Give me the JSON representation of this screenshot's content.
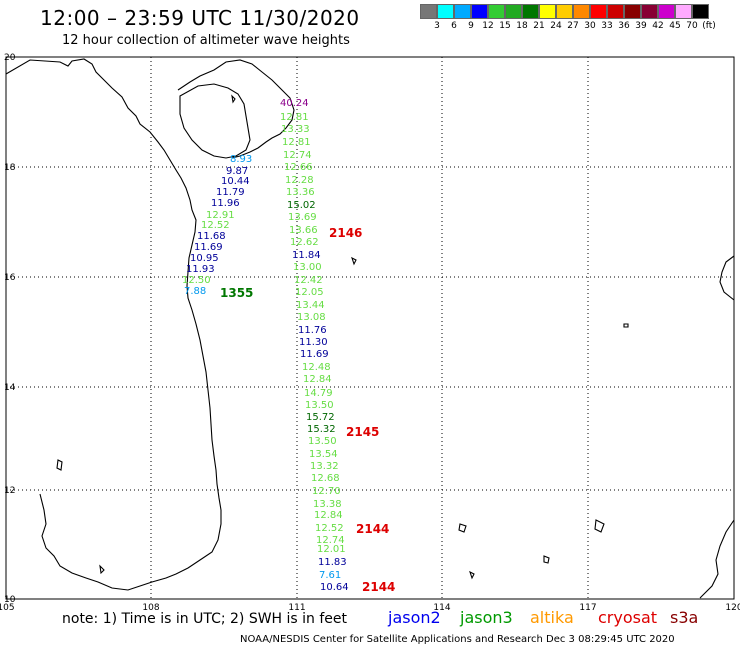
{
  "header": {
    "title": "12:00 – 23:59 UTC 11/30/2020",
    "subtitle": "12 hour collection of altimeter wave heights"
  },
  "colorbar": {
    "labels": [
      "3",
      "6",
      "9",
      "12",
      "15",
      "18",
      "21",
      "24",
      "27",
      "30",
      "33",
      "36",
      "39",
      "42",
      "45",
      "70",
      "(ft)"
    ],
    "colors": [
      "#777777",
      "#00ffff",
      "#00aaff",
      "#0000ff",
      "#33cc33",
      "#22aa22",
      "#007700",
      "#ffff00",
      "#ffcc00",
      "#ff8800",
      "#ff0000",
      "#cc0000",
      "#880000",
      "#880033",
      "#cc00cc",
      "#ffaaff",
      "#000000"
    ]
  },
  "axes": {
    "x_ticks": [
      "105",
      "108",
      "111",
      "114",
      "117",
      "120"
    ],
    "y_ticks": [
      "20",
      "18",
      "16",
      "14",
      "12",
      "10"
    ]
  },
  "observations": [
    {
      "v": "40.24",
      "color": "#8b008b"
    },
    {
      "v": "12.81",
      "color": "#66dd44"
    },
    {
      "v": "13.33",
      "color": "#66dd44"
    },
    {
      "v": "12.81",
      "color": "#66dd44"
    },
    {
      "v": "12.74",
      "color": "#66dd44"
    },
    {
      "v": "12.66",
      "color": "#66dd44"
    },
    {
      "v": "12.28",
      "color": "#66dd44"
    },
    {
      "v": "13.36",
      "color": "#66dd44"
    },
    {
      "v": "15.02",
      "color": "#006600"
    },
    {
      "v": "13.69",
      "color": "#66dd44"
    },
    {
      "v": "13.66",
      "color": "#66dd44"
    },
    {
      "v": "12.62",
      "color": "#66dd44"
    },
    {
      "v": "11.84",
      "color": "#000099"
    },
    {
      "v": "13.00",
      "color": "#66dd44"
    },
    {
      "v": "12.42",
      "color": "#66dd44"
    },
    {
      "v": "12.05",
      "color": "#66dd44"
    },
    {
      "v": "13.44",
      "color": "#66dd44"
    },
    {
      "v": "13.08",
      "color": "#66dd44"
    },
    {
      "v": "11.76",
      "color": "#000099"
    },
    {
      "v": "11.30",
      "color": "#000099"
    },
    {
      "v": "11.69",
      "color": "#000099"
    },
    {
      "v": "12.48",
      "color": "#66dd44"
    },
    {
      "v": "12.84",
      "color": "#66dd44"
    },
    {
      "v": "14.79",
      "color": "#66dd44"
    },
    {
      "v": "13.50",
      "color": "#66dd44"
    },
    {
      "v": "15.72",
      "color": "#006600"
    },
    {
      "v": "15.32",
      "color": "#006600"
    },
    {
      "v": "13.50",
      "color": "#66dd44"
    },
    {
      "v": "13.54",
      "color": "#66dd44"
    },
    {
      "v": "13.32",
      "color": "#66dd44"
    },
    {
      "v": "12.68",
      "color": "#66dd44"
    },
    {
      "v": "12.70",
      "color": "#66dd44"
    },
    {
      "v": "13.38",
      "color": "#66dd44"
    },
    {
      "v": "12.84",
      "color": "#66dd44"
    },
    {
      "v": "12.52",
      "color": "#66dd44"
    },
    {
      "v": "12.74",
      "color": "#66dd44"
    },
    {
      "v": "12.01",
      "color": "#66dd44"
    },
    {
      "v": "11.83",
      "color": "#000099"
    },
    {
      "v": "7.61",
      "color": "#0099ee"
    },
    {
      "v": "10.64",
      "color": "#000099"
    },
    {
      "v": "8.93",
      "color": "#0099ee"
    },
    {
      "v": "9.87",
      "color": "#000099"
    },
    {
      "v": "10.44",
      "color": "#000099"
    },
    {
      "v": "11.79",
      "color": "#000099"
    },
    {
      "v": "11.96",
      "color": "#000099"
    },
    {
      "v": "12.91",
      "color": "#66dd44"
    },
    {
      "v": "12.52",
      "color": "#66dd44"
    },
    {
      "v": "11.68",
      "color": "#000099"
    },
    {
      "v": "11.69",
      "color": "#000099"
    },
    {
      "v": "10.95",
      "color": "#000099"
    },
    {
      "v": "11.93",
      "color": "#000099"
    },
    {
      "v": "12.50",
      "color": "#66dd44"
    },
    {
      "v": "7.88",
      "color": "#0099ee"
    }
  ],
  "passes": [
    {
      "time": "2146",
      "color": "#dd0000"
    },
    {
      "time": "2145",
      "color": "#dd0000"
    },
    {
      "time": "2144",
      "color": "#dd0000"
    },
    {
      "time": "2144",
      "color": "#dd0000"
    },
    {
      "time": "1355",
      "color": "#007700"
    }
  ],
  "footer": {
    "note": "note: 1) Time is in UTC; 2) SWH is in feet",
    "satellites": [
      {
        "name": "jason2",
        "color": "#0000ee"
      },
      {
        "name": "jason3",
        "color": "#009900"
      },
      {
        "name": "altika",
        "color": "#ff9900"
      },
      {
        "name": "cryosat",
        "color": "#dd0000"
      },
      {
        "name": "s3a",
        "color": "#880000"
      }
    ],
    "credit": "NOAA/NESDIS Center for Satellite Applications and Research     Dec  3 08:29:45 UTC 2020"
  }
}
